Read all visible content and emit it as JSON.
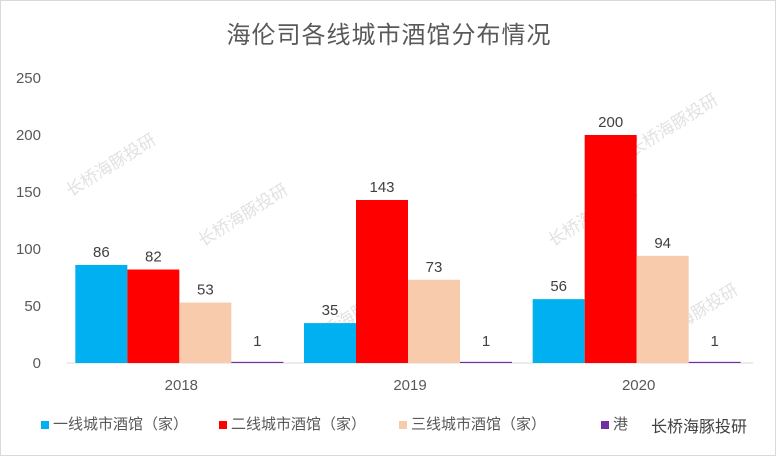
{
  "chart_data": {
    "type": "bar",
    "title": "海伦司各线城市酒馆分布情况",
    "categories": [
      "2018",
      "2019",
      "2020"
    ],
    "ylim": [
      0,
      250
    ],
    "yticks": [
      "0",
      "50",
      "100",
      "150",
      "200",
      "250"
    ],
    "grid": false,
    "legend_position": "bottom",
    "series": [
      {
        "name": "一线城市酒馆（家）",
        "color": "#00b0f0",
        "values": [
          86,
          35,
          56
        ]
      },
      {
        "name": "二线城市酒馆（家）",
        "color": "#ff0000",
        "values": [
          82,
          143,
          200
        ]
      },
      {
        "name": "三线城市酒馆（家）",
        "color": "#f8cbad",
        "values": [
          53,
          73,
          94
        ]
      },
      {
        "name": "港",
        "color": "#7030a0",
        "values": [
          1,
          1,
          1
        ]
      }
    ]
  },
  "watermark": {
    "text": "长桥海豚投研"
  }
}
